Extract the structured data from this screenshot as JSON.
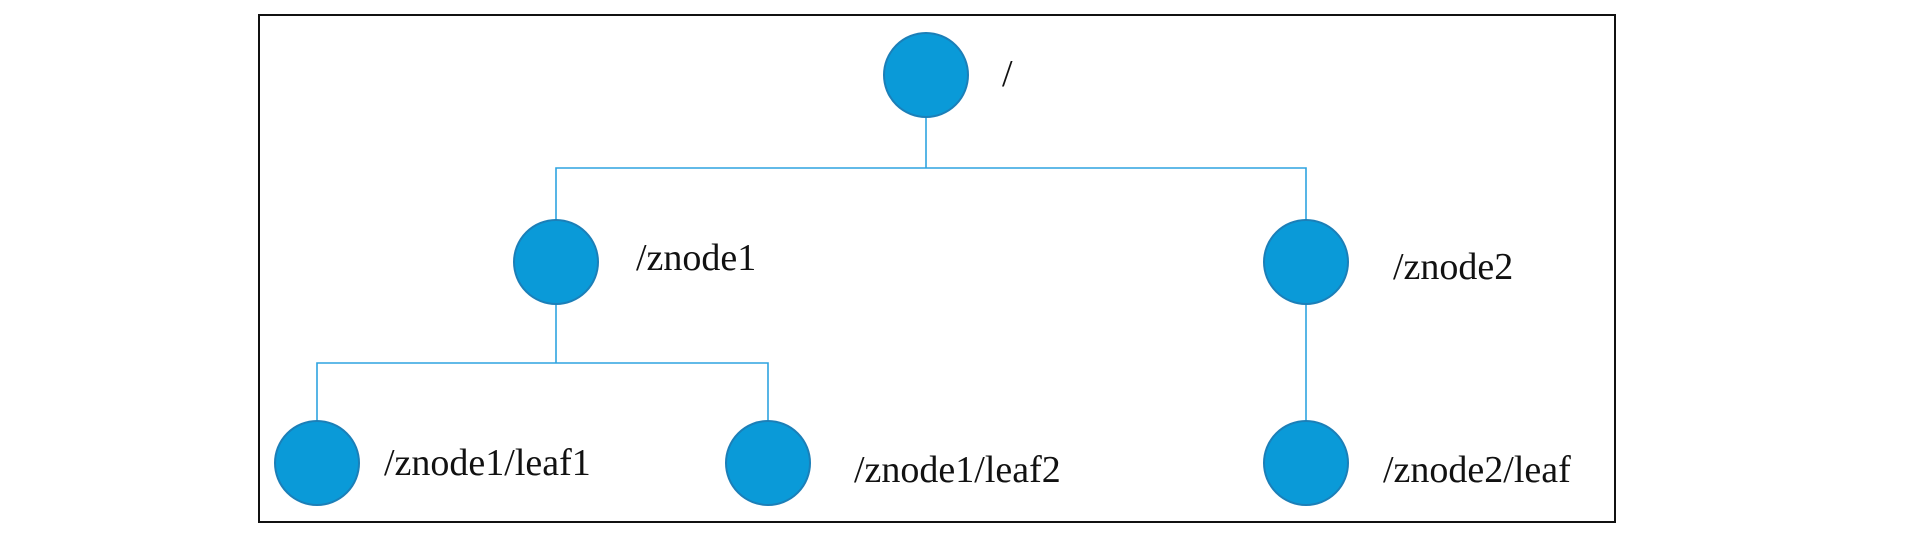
{
  "diagram": {
    "colors": {
      "node_fill": "#0a9ad8",
      "node_stroke": "#1b7fb8",
      "edge": "#2ea3e0",
      "frame": "#111111"
    },
    "nodes": {
      "root": {
        "label": "/"
      },
      "znode1": {
        "label": "/znode1"
      },
      "znode2": {
        "label": "/znode2"
      },
      "leaf1": {
        "label": "/znode1/leaf1"
      },
      "leaf2": {
        "label": "/znode1/leaf2"
      },
      "znode2_leaf": {
        "label": "/znode2/leaf"
      }
    }
  }
}
